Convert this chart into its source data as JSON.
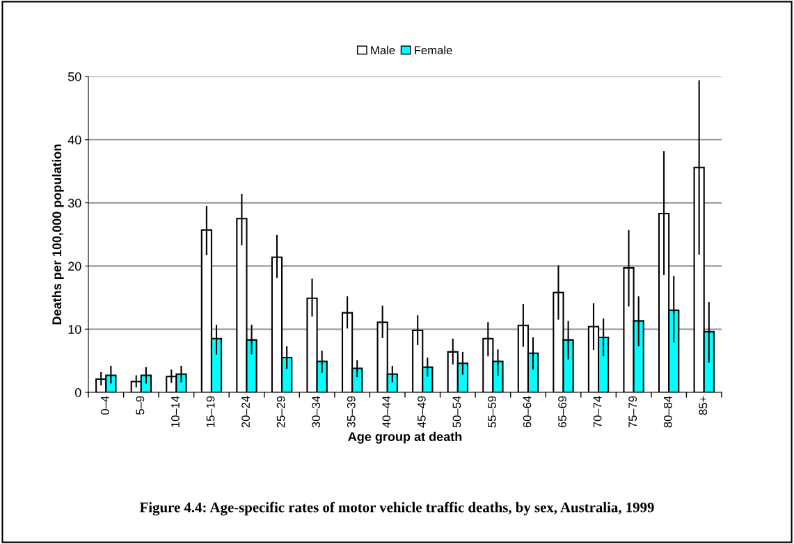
{
  "chart_data": {
    "type": "bar",
    "xlabel": "Age group at death",
    "ylabel": "Deaths per 100,000 population",
    "categories": [
      "0–4",
      "5–9",
      "10–14",
      "15–19",
      "20–24",
      "25–29",
      "30–34",
      "35–39",
      "40–44",
      "45–49",
      "50–54",
      "55–59",
      "60–64",
      "65–69",
      "70–74",
      "75–79",
      "80–84",
      "85+"
    ],
    "series": [
      {
        "name": "Male",
        "color": "#ffffff",
        "values": [
          2.1,
          1.7,
          2.5,
          25.7,
          27.5,
          21.4,
          14.9,
          12.6,
          11.1,
          9.8,
          6.4,
          8.5,
          10.6,
          15.8,
          10.4,
          19.7,
          28.3,
          35.6
        ],
        "errors": [
          [
            1.1,
            3.2
          ],
          [
            0.8,
            2.7
          ],
          [
            1.5,
            3.6
          ],
          [
            21.7,
            29.5
          ],
          [
            23.3,
            31.4
          ],
          [
            18.1,
            24.9
          ],
          [
            12.0,
            18.0
          ],
          [
            10.1,
            15.2
          ],
          [
            8.6,
            13.7
          ],
          [
            7.5,
            12.2
          ],
          [
            4.4,
            8.5
          ],
          [
            5.7,
            11.1
          ],
          [
            7.2,
            14.0
          ],
          [
            11.5,
            20.1
          ],
          [
            6.7,
            14.1
          ],
          [
            13.6,
            25.7
          ],
          [
            18.6,
            38.2
          ],
          [
            21.8,
            49.4
          ]
        ]
      },
      {
        "name": "Female",
        "color": "#00ffff",
        "values": [
          2.7,
          2.7,
          2.9,
          8.5,
          8.3,
          5.5,
          4.9,
          3.8,
          2.9,
          4.0,
          4.6,
          4.9,
          6.2,
          8.3,
          8.7,
          11.3,
          13.0,
          9.6
        ],
        "errors": [
          [
            1.4,
            4.2
          ],
          [
            1.4,
            4.0
          ],
          [
            1.6,
            4.2
          ],
          [
            6.0,
            10.7
          ],
          [
            6.0,
            10.7
          ],
          [
            3.7,
            7.3
          ],
          [
            3.1,
            6.6
          ],
          [
            2.4,
            5.1
          ],
          [
            1.6,
            4.2
          ],
          [
            2.5,
            5.5
          ],
          [
            2.8,
            6.4
          ],
          [
            2.6,
            6.8
          ],
          [
            3.6,
            8.7
          ],
          [
            5.2,
            11.3
          ],
          [
            5.7,
            11.7
          ],
          [
            7.3,
            15.2
          ],
          [
            7.9,
            18.4
          ],
          [
            4.7,
            14.3
          ]
        ]
      }
    ],
    "ylim": [
      0,
      50
    ],
    "yticks": [
      0,
      10,
      20,
      30,
      40,
      50
    ],
    "grid": "y",
    "legend": "top",
    "annotations": [
      "Figure 4.4: Age-specific rates of motor vehicle traffic deaths, by sex, Australia, 1999"
    ]
  }
}
